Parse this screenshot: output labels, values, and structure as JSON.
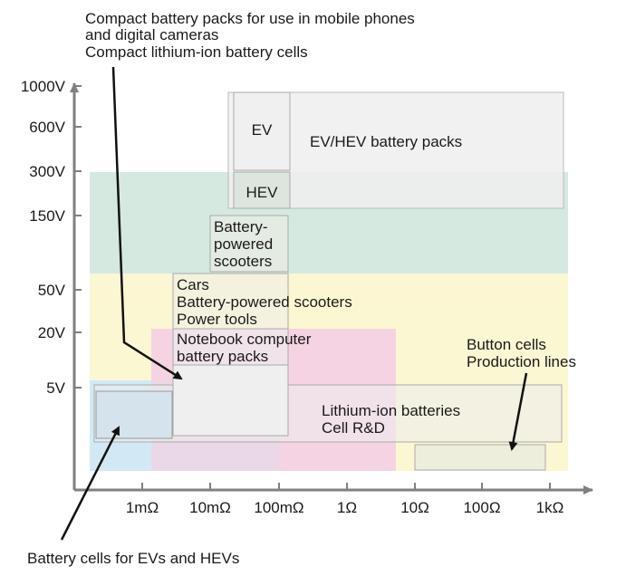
{
  "header_notes": [
    "Compact battery packs for use in mobile phones",
    "and digital cameras",
    "Compact lithium-ion battery cells"
  ],
  "y_ticks": [
    "1000V",
    "600V",
    "300V",
    "150V",
    "50V",
    "20V",
    "5V"
  ],
  "x_ticks": [
    "1mΩ",
    "10mΩ",
    "100mΩ",
    "1Ω",
    "10Ω",
    "100Ω",
    "1kΩ"
  ],
  "regions": {
    "ev": "EV",
    "ev_hev_packs": "EV/HEV battery packs",
    "hev": "HEV",
    "scooters": [
      "Battery-",
      "powered",
      "scooters"
    ],
    "cars_tools": [
      "Cars",
      "Battery-powered scooters",
      "Power tools"
    ],
    "notebook": [
      "Notebook computer",
      "battery packs"
    ],
    "liion_rd": [
      "Lithium-ion batteries",
      "Cell R&D"
    ],
    "button_cells": [
      "Button cells",
      "Production lines"
    ]
  },
  "footer_note": "Battery cells for EVs and HEVs",
  "colors": {
    "green_band": "#d5e9e0",
    "yellow_band": "#fbf7d2",
    "pink_band": "#f6d3e2",
    "blue_band": "#d2e9f5",
    "box_fill": "#eeeeee",
    "axis": "#808080"
  }
}
